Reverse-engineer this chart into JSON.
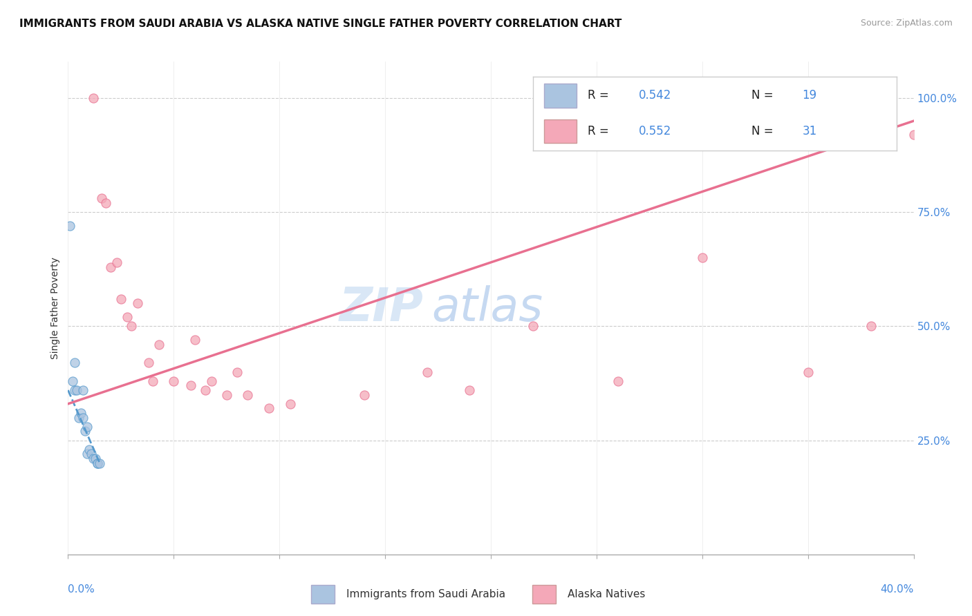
{
  "title": "IMMIGRANTS FROM SAUDI ARABIA VS ALASKA NATIVE SINGLE FATHER POVERTY CORRELATION CHART",
  "source": "Source: ZipAtlas.com",
  "ylabel": "Single Father Poverty",
  "xmin": 0.0,
  "xmax": 0.4,
  "ymin": 0.0,
  "ymax": 1.08,
  "color_blue": "#aac4e0",
  "color_pink": "#f4a8b8",
  "line_blue": "#5599cc",
  "line_pink": "#e87090",
  "watermark_zip": "ZIP",
  "watermark_atlas": "atlas",
  "blue_scatter_x": [
    0.001,
    0.002,
    0.003,
    0.003,
    0.004,
    0.005,
    0.006,
    0.007,
    0.007,
    0.008,
    0.009,
    0.009,
    0.01,
    0.011,
    0.012,
    0.013,
    0.014,
    0.014,
    0.015
  ],
  "blue_scatter_y": [
    0.72,
    0.38,
    0.42,
    0.36,
    0.36,
    0.3,
    0.31,
    0.3,
    0.36,
    0.27,
    0.28,
    0.22,
    0.23,
    0.22,
    0.21,
    0.21,
    0.2,
    0.2,
    0.2
  ],
  "pink_scatter_x": [
    0.012,
    0.016,
    0.018,
    0.02,
    0.023,
    0.025,
    0.028,
    0.03,
    0.033,
    0.038,
    0.04,
    0.043,
    0.05,
    0.058,
    0.06,
    0.065,
    0.068,
    0.075,
    0.08,
    0.085,
    0.095,
    0.105,
    0.14,
    0.17,
    0.19,
    0.22,
    0.26,
    0.3,
    0.35,
    0.38,
    0.4
  ],
  "pink_scatter_y": [
    1.0,
    0.78,
    0.77,
    0.63,
    0.64,
    0.56,
    0.52,
    0.5,
    0.55,
    0.42,
    0.38,
    0.46,
    0.38,
    0.37,
    0.47,
    0.36,
    0.38,
    0.35,
    0.4,
    0.35,
    0.32,
    0.33,
    0.35,
    0.4,
    0.36,
    0.5,
    0.38,
    0.65,
    0.4,
    0.5,
    0.92
  ],
  "blue_trend_x": [
    0.0,
    0.015
  ],
  "blue_trend_y": [
    0.36,
    0.2
  ],
  "pink_trend_x": [
    0.0,
    0.4
  ],
  "pink_trend_y": [
    0.33,
    0.95
  ],
  "ytick_vals": [
    0.25,
    0.5,
    0.75,
    1.0
  ],
  "ytick_labels": [
    "25.0%",
    "50.0%",
    "75.0%",
    "100.0%"
  ]
}
